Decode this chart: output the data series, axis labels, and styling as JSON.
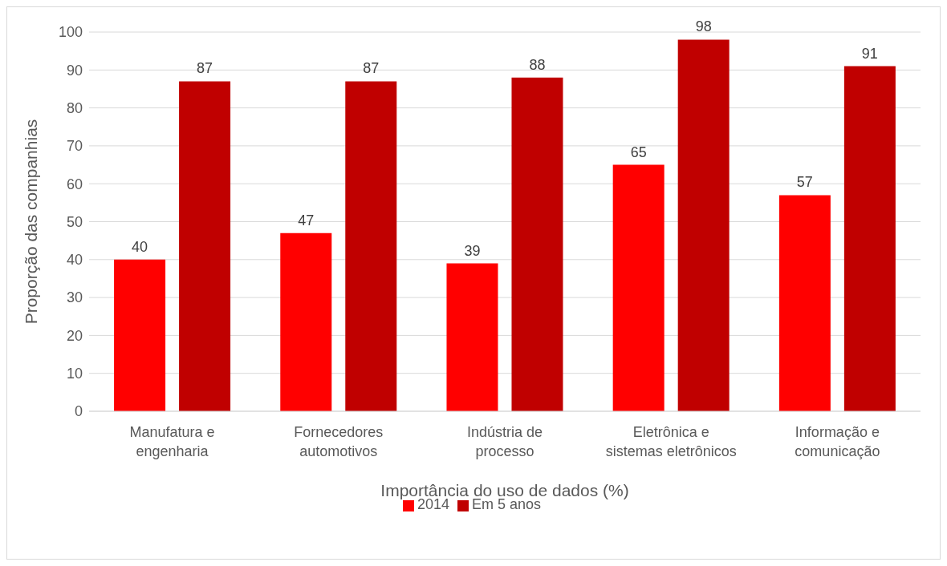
{
  "chart_data": {
    "type": "bar",
    "xlabel": "Importância do uso de dados (%)",
    "ylabel": "Proporção das companhias",
    "categories": [
      "Manufatura e engenharia",
      "Fornecedores automotivos",
      "Indústria de processo",
      "Eletrônica e sistemas eletrônicos",
      "Informação e comunicação"
    ],
    "series": [
      {
        "name": "2014",
        "color": "#ff0000",
        "values": [
          40,
          47,
          39,
          65,
          57
        ]
      },
      {
        "name": "Em 5 anos",
        "color": "#c00000",
        "values": [
          87,
          87,
          88,
          98,
          91
        ]
      }
    ],
    "ylim": [
      0,
      100
    ],
    "yticks": [
      0,
      10,
      20,
      30,
      40,
      50,
      60,
      70,
      80,
      90,
      100
    ],
    "grid": "y",
    "legend": "bottom",
    "data_labels": true
  }
}
